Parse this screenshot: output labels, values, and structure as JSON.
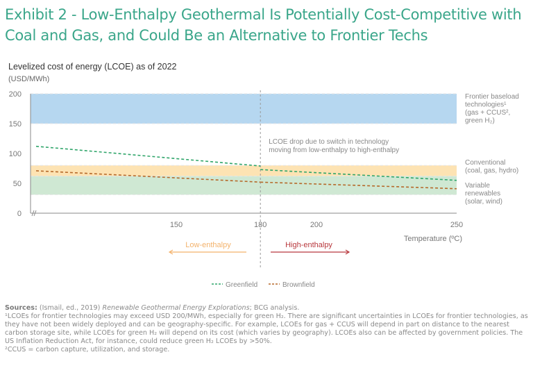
{
  "title_line1": "Exhibit 2 - Low-Enthalpy Geothermal Is Potentially Cost-Competitive with",
  "title_line2": "Coal and Gas, and Could Be an Alternative to Frontier Techs",
  "chart_data": {
    "type": "line",
    "title": "Levelized cost of energy (LCOE) as of 2022",
    "ylabel": "(USD/MWh)",
    "xlabel": "Temperature (ºC)",
    "ylim": [
      0,
      200
    ],
    "xlim": [
      100,
      250
    ],
    "x_axis_break": true,
    "yticks": [
      0,
      50,
      100,
      150,
      200
    ],
    "xticks": [
      150,
      180,
      200,
      250
    ],
    "grid": false,
    "legend_position": "bottom-center",
    "bands": [
      {
        "name": "Frontier baseload technologies",
        "label_lines": [
          "Frontier baseload",
          "technologies¹",
          "(gas + CCUS²,",
          "green H₂)"
        ],
        "range": [
          150,
          200
        ],
        "color": "#b6d7f0"
      },
      {
        "name": "Conventional",
        "label_lines": [
          "Conventional",
          "(coal, gas, hydro)"
        ],
        "range": [
          62,
          80
        ],
        "color": "#fde3b3"
      },
      {
        "name": "Variable renewables",
        "label_lines": [
          "Variable",
          "renewables",
          "(solar, wind)"
        ],
        "range": [
          31,
          62
        ],
        "color": "#cfe8d3"
      }
    ],
    "series": [
      {
        "name": "Greenfield",
        "color": "#2fa56a",
        "segments": [
          {
            "x": [
              100,
              180
            ],
            "y": [
              112,
              79
            ]
          },
          {
            "x": [
              180,
              250
            ],
            "y": [
              73,
              55
            ]
          }
        ]
      },
      {
        "name": "Brownfield",
        "color": "#b5692a",
        "segments": [
          {
            "x": [
              100,
              180
            ],
            "y": [
              71,
              52
            ]
          },
          {
            "x": [
              180,
              250
            ],
            "y": [
              52,
              41
            ]
          }
        ]
      }
    ],
    "threshold": {
      "x": 180
    },
    "annotation_lines": [
      "LCOE drop due to switch in technology",
      "moving from low-enthalpy to high-enthalpy"
    ],
    "regions": {
      "low": {
        "label": "Low-enthalpy",
        "color": "#f3b26b"
      },
      "high": {
        "label": "High-enthalpy",
        "color": "#b8383d"
      }
    }
  },
  "footer": {
    "sources_label": "Sources:",
    "sources_text": " (Ismail, ed., 2019) ",
    "sources_italic": "Renewable Geothermal Energy Explorations",
    "sources_end": "; BCG analysis.",
    "note1": "¹LCOEs for frontier technologies may exceed USD 200/MWh, especially for green H₂. There are significant uncertainties in LCOEs for frontier technologies, as they have not been widely deployed and can be geography-specific. For example, LCOEs for gas + CCUS will depend in part on distance to the nearest carbon storage site, while LCOEs for green H₂ will depend on its cost (which varies by geography). LCOEs also can be affected by government policies. The US Inflation Reduction Act, for instance, could reduce green H₂ LCOEs by >50%.",
    "note2": "²CCUS = carbon capture, utilization, and storage."
  }
}
